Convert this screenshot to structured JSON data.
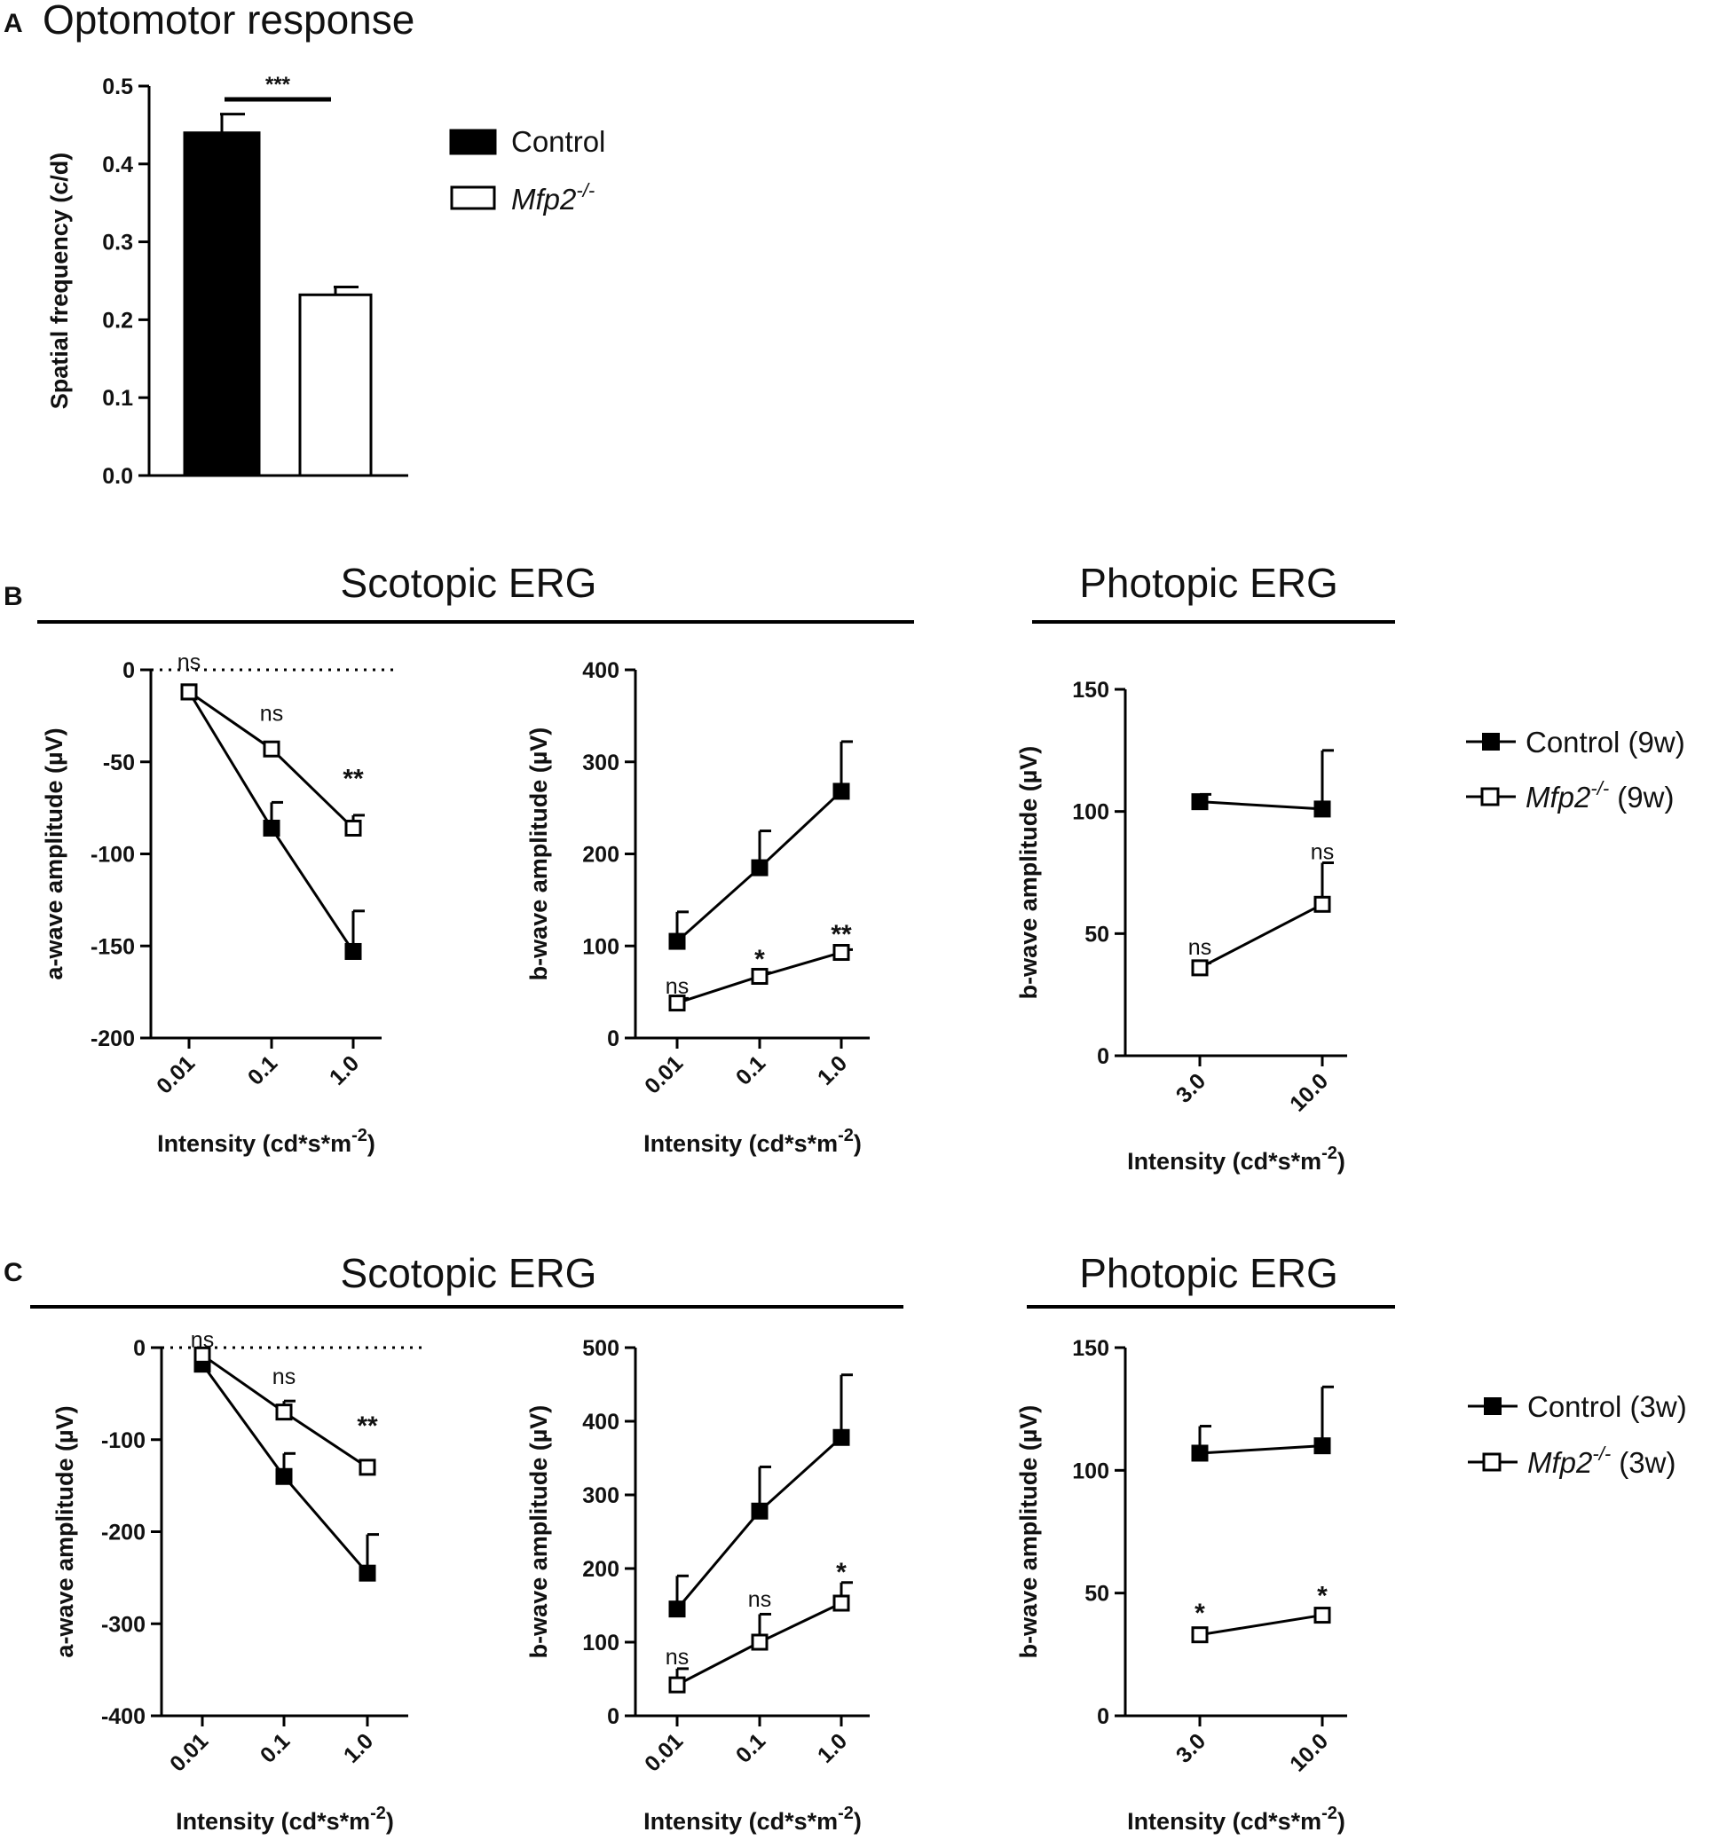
{
  "panels": {
    "A": {
      "letter": "A",
      "title": "Optomotor response",
      "legend": [
        {
          "label": "Control",
          "sup": "",
          "suffix": ""
        },
        {
          "label": "Mfp2",
          "sup": "-/-",
          "suffix": ""
        }
      ]
    },
    "B": {
      "letter": "B",
      "scotopic_title": "Scotopic ERG",
      "photopic_title": "Photopic ERG",
      "legend": [
        {
          "label": "Control (9w)",
          "sup": "",
          "suffix": ""
        },
        {
          "label": "Mfp2",
          "sup": "-/-",
          "suffix": " (9w)"
        }
      ]
    },
    "C": {
      "letter": "C",
      "scotopic_title": "Scotopic ERG",
      "photopic_title": "Photopic ERG",
      "legend": [
        {
          "label": "Control (3w)",
          "sup": "",
          "suffix": ""
        },
        {
          "label": "Mfp2",
          "sup": "-/-",
          "suffix": " (3w)"
        }
      ]
    }
  },
  "chart_data": [
    {
      "id": "A",
      "type": "bar",
      "title": "Optomotor response",
      "ylabel": "Spatial frequency (c/d)",
      "ylim": [
        0,
        0.5
      ],
      "yticks": [
        0.0,
        0.1,
        0.2,
        0.3,
        0.4,
        0.5
      ],
      "ytick_labels": [
        "0.0",
        "0.1",
        "0.2",
        "0.3",
        "0.4",
        "0.5"
      ],
      "categories": [
        "Control",
        "Mfp2-/-"
      ],
      "values": [
        0.44,
        0.232
      ],
      "errors": [
        0.024,
        0.01
      ],
      "annotations": [
        {
          "text": "***",
          "between": [
            0,
            1
          ]
        }
      ],
      "legend_position": "right"
    },
    {
      "id": "B1",
      "type": "line",
      "ylabel": "a-wave amplitude (µV)",
      "xlabel": "Intensity (cd*s*m",
      "xlabel_sup": "-2",
      "xlabel_end": ")",
      "categories": [
        "0.01",
        "0.1",
        "1.0"
      ],
      "ylim": [
        -200,
        0
      ],
      "yticks": [
        0,
        -50,
        -100,
        -150,
        -200
      ],
      "zero_line": true,
      "series": [
        {
          "name": "Control (9w)",
          "marker": "filled-square",
          "values": [
            -12,
            -86,
            -153
          ],
          "errors": [
            0,
            14,
            22
          ],
          "error_dir": "up"
        },
        {
          "name": "Mfp2-/- (9w)",
          "marker": "open-square",
          "values": [
            -12,
            -43,
            -86
          ],
          "errors": [
            0,
            0,
            7
          ],
          "error_dir": "up"
        }
      ],
      "annotations": [
        {
          "text": "ns",
          "x_index": 0,
          "y": 5,
          "style": "ns"
        },
        {
          "text": "ns",
          "x_index": 1,
          "y": -23,
          "style": "ns"
        },
        {
          "text": "**",
          "x_index": 2,
          "y": -59,
          "style": "bold"
        }
      ]
    },
    {
      "id": "B2",
      "type": "line",
      "ylabel": "b-wave amplitude (µV)",
      "xlabel": "Intensity (cd*s*m",
      "xlabel_sup": "-2",
      "xlabel_end": ")",
      "categories": [
        "0.01",
        "0.1",
        "1.0"
      ],
      "ylim": [
        0,
        400
      ],
      "yticks": [
        0,
        100,
        200,
        300,
        400
      ],
      "zero_line": false,
      "series": [
        {
          "name": "Control (9w)",
          "marker": "filled-square",
          "values": [
            105,
            185,
            268
          ],
          "errors": [
            32,
            40,
            54
          ],
          "error_dir": "up"
        },
        {
          "name": "Mfp2-/- (9w)",
          "marker": "open-square",
          "values": [
            38,
            67,
            93
          ],
          "errors": [
            5,
            4,
            3
          ],
          "error_dir": "up"
        }
      ],
      "annotations": [
        {
          "text": "ns",
          "x_index": 0,
          "y": 58,
          "style": "ns"
        },
        {
          "text": "*",
          "x_index": 1,
          "y": 86,
          "style": "bold"
        },
        {
          "text": "**",
          "x_index": 2,
          "y": 113,
          "style": "bold"
        }
      ]
    },
    {
      "id": "B3",
      "type": "line",
      "ylabel": "b-wave amplitude (µV)",
      "xlabel": "Intensity (cd*s*m",
      "xlabel_sup": "-2",
      "xlabel_end": ")",
      "categories": [
        "3.0",
        "10.0"
      ],
      "ylim": [
        0,
        150
      ],
      "yticks": [
        0,
        50,
        100,
        150
      ],
      "zero_line": false,
      "series": [
        {
          "name": "Control (9w)",
          "marker": "filled-square",
          "values": [
            104,
            101
          ],
          "errors": [
            3,
            24
          ],
          "error_dir": "up"
        },
        {
          "name": "Mfp2-/- (9w)",
          "marker": "open-square",
          "values": [
            36,
            62
          ],
          "errors": [
            2,
            17
          ],
          "error_dir": "up"
        }
      ],
      "annotations": [
        {
          "text": "ns",
          "x_index": 0,
          "y": 45,
          "style": "ns"
        },
        {
          "text": "ns",
          "x_index": 1,
          "y": 84,
          "style": "ns"
        }
      ]
    },
    {
      "id": "C1",
      "type": "line",
      "ylabel": "a-wave amplitude (µV)",
      "xlabel": "Intensity (cd*s*m",
      "xlabel_sup": "-2",
      "xlabel_end": ")",
      "categories": [
        "0.01",
        "0.1",
        "1.0"
      ],
      "ylim": [
        -400,
        0
      ],
      "yticks": [
        0,
        -100,
        -200,
        -300,
        -400
      ],
      "zero_line": true,
      "series": [
        {
          "name": "Control (3w)",
          "marker": "filled-square",
          "values": [
            -18,
            -140,
            -245
          ],
          "errors": [
            0,
            25,
            42
          ],
          "error_dir": "up"
        },
        {
          "name": "Mfp2-/- (3w)",
          "marker": "open-square",
          "values": [
            -8,
            -70,
            -130
          ],
          "errors": [
            0,
            12,
            0
          ],
          "error_dir": "up"
        }
      ],
      "annotations": [
        {
          "text": "ns",
          "x_index": 0,
          "y": 10,
          "style": "ns"
        },
        {
          "text": "ns",
          "x_index": 1,
          "y": -30,
          "style": "ns"
        },
        {
          "text": "**",
          "x_index": 2,
          "y": -85,
          "style": "bold"
        }
      ]
    },
    {
      "id": "C2",
      "type": "line",
      "ylabel": "b-wave amplitude (µV)",
      "xlabel": "Intensity (cd*s*m",
      "xlabel_sup": "-2",
      "xlabel_end": ")",
      "categories": [
        "0.01",
        "0.1",
        "1.0"
      ],
      "ylim": [
        0,
        500
      ],
      "yticks": [
        0,
        100,
        200,
        300,
        400,
        500
      ],
      "zero_line": false,
      "series": [
        {
          "name": "Control (3w)",
          "marker": "filled-square",
          "values": [
            145,
            278,
            378
          ],
          "errors": [
            45,
            60,
            85
          ],
          "error_dir": "up"
        },
        {
          "name": "Mfp2-/- (3w)",
          "marker": "open-square",
          "values": [
            42,
            100,
            153
          ],
          "errors": [
            22,
            38,
            28
          ],
          "error_dir": "up"
        }
      ],
      "annotations": [
        {
          "text": "ns",
          "x_index": 0,
          "y": 82,
          "style": "ns"
        },
        {
          "text": "ns",
          "x_index": 1,
          "y": 160,
          "style": "ns"
        },
        {
          "text": "*",
          "x_index": 2,
          "y": 195,
          "style": "bold"
        }
      ]
    },
    {
      "id": "C3",
      "type": "line",
      "ylabel": "b-wave amplitude (µV)",
      "xlabel": "Intensity (cd*s*m",
      "xlabel_sup": "-2",
      "xlabel_end": ")",
      "categories": [
        "3.0",
        "10.0"
      ],
      "ylim": [
        0,
        150
      ],
      "yticks": [
        0,
        50,
        100,
        150
      ],
      "zero_line": false,
      "series": [
        {
          "name": "Control (3w)",
          "marker": "filled-square",
          "values": [
            107,
            110
          ],
          "errors": [
            11,
            24
          ],
          "error_dir": "up"
        },
        {
          "name": "Mfp2-/- (3w)",
          "marker": "open-square",
          "values": [
            33,
            41
          ],
          "errors": [
            0,
            0
          ],
          "error_dir": "up"
        }
      ],
      "annotations": [
        {
          "text": "*",
          "x_index": 0,
          "y": 42,
          "style": "bold"
        },
        {
          "text": "*",
          "x_index": 1,
          "y": 49,
          "style": "bold"
        }
      ]
    }
  ]
}
